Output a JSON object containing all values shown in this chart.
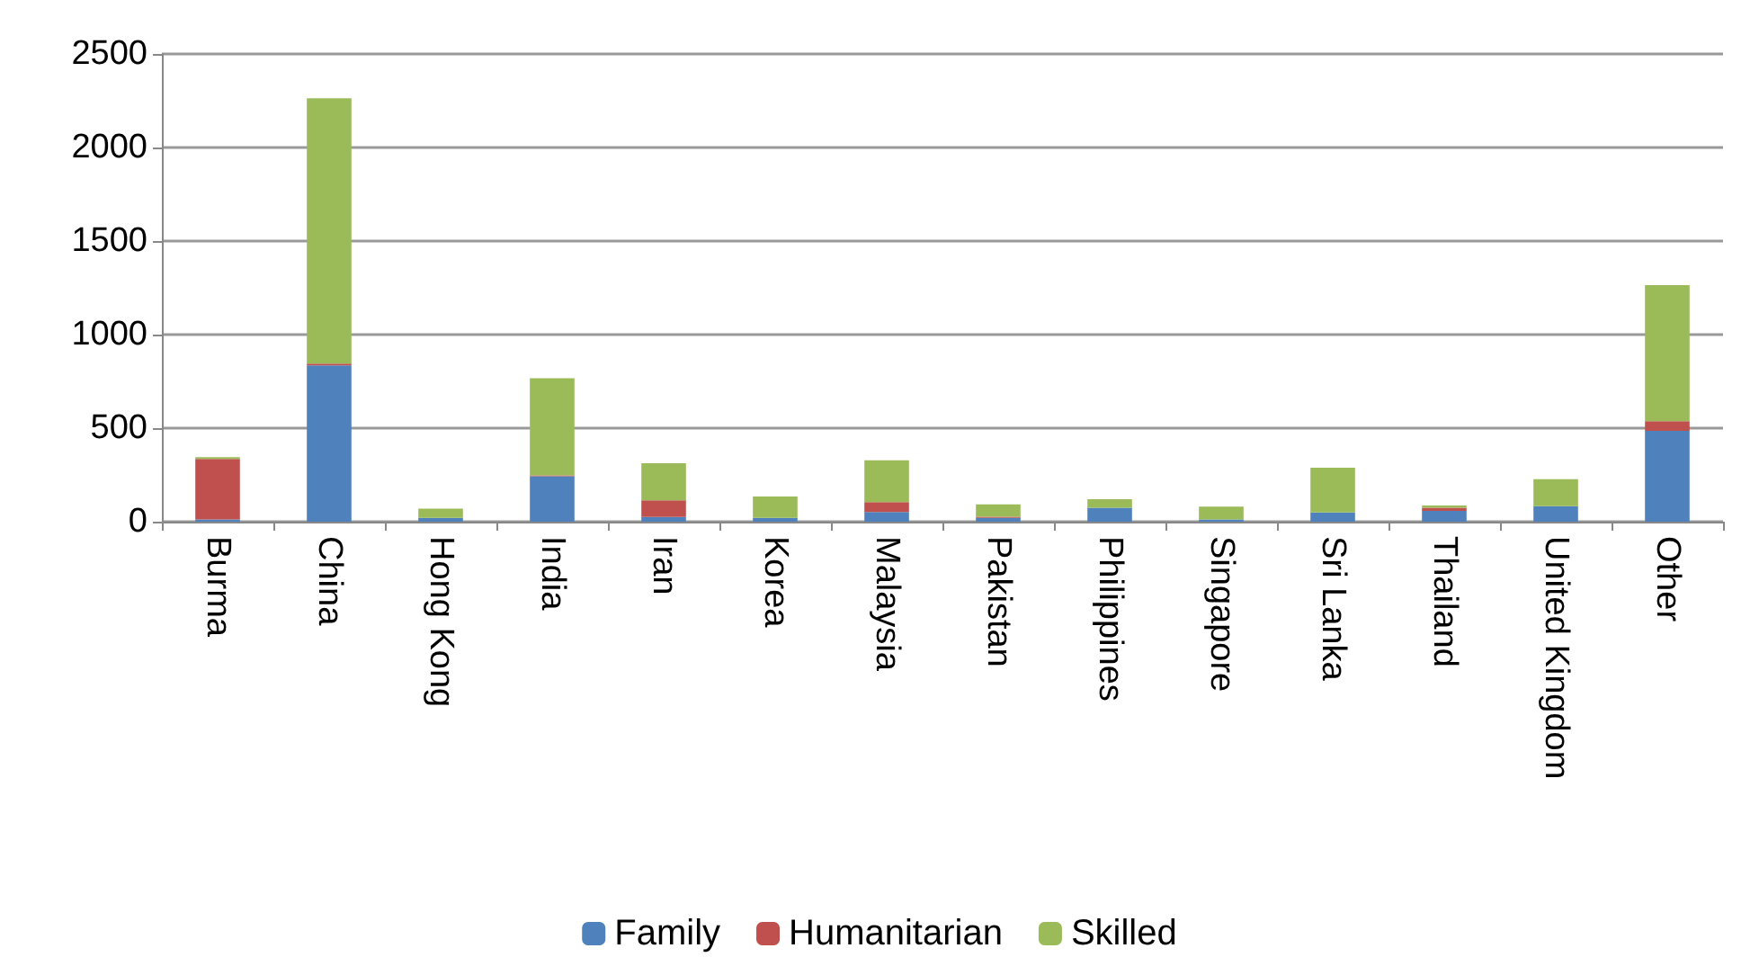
{
  "chart_data": {
    "type": "bar",
    "stacked": true,
    "categories": [
      "Burma",
      "China",
      "Hong Kong",
      "India",
      "Iran",
      "Korea",
      "Malaysia",
      "Pakistan",
      "Philippines",
      "Singapore",
      "Sri Lanka",
      "Thailand",
      "United Kingdom",
      "Other"
    ],
    "series": [
      {
        "name": "Family",
        "color": "#4f81bd",
        "values": [
          12,
          835,
          21,
          243,
          25,
          21,
          52,
          21,
          74,
          12,
          49,
          58,
          83,
          485
        ]
      },
      {
        "name": "Humanitarian",
        "color": "#c0504d",
        "values": [
          323,
          10,
          0,
          5,
          89,
          0,
          52,
          5,
          0,
          0,
          0,
          16,
          0,
          52
        ]
      },
      {
        "name": "Skilled",
        "color": "#9bbb59",
        "values": [
          10,
          1418,
          49,
          519,
          199,
          114,
          224,
          66,
          46,
          68,
          240,
          12,
          144,
          728
        ]
      }
    ],
    "ylim": [
      0,
      2500
    ],
    "yticks": [
      0,
      500,
      1000,
      1500,
      2000,
      2500
    ],
    "grid": "y",
    "legend": "bottom"
  }
}
